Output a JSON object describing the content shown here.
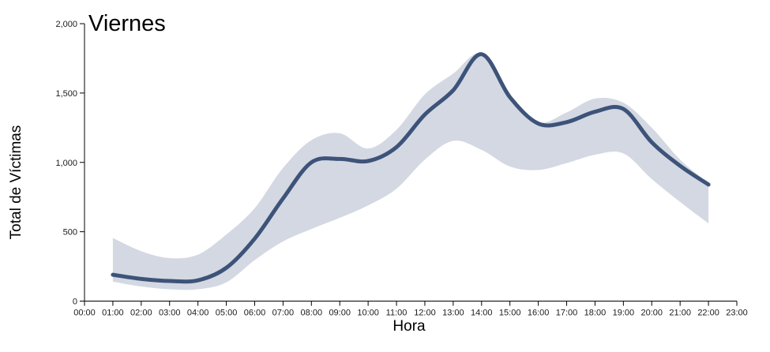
{
  "title": "Viernes",
  "axes": {
    "x_label": "Hora",
    "y_label": "Total de Víctimas"
  },
  "chart_data": {
    "type": "line",
    "subtype": "smoothed line with confidence band",
    "title": "Viernes",
    "xlabel": "Hora",
    "ylabel": "Total de Víctimas",
    "x_domain_hours": [
      0,
      23
    ],
    "ylim": [
      0,
      2000
    ],
    "grid": false,
    "legend": "none",
    "x_tick_labels": [
      "00:00",
      "01:00",
      "02:00",
      "03:00",
      "04:00",
      "05:00",
      "06:00",
      "07:00",
      "08:00",
      "09:00",
      "10:00",
      "11:00",
      "12:00",
      "13:00",
      "14:00",
      "15:00",
      "16:00",
      "17:00",
      "18:00",
      "19:00",
      "20:00",
      "21:00",
      "22:00",
      "23:00"
    ],
    "y_ticks": [
      {
        "value": 0,
        "label": "0"
      },
      {
        "value": 500,
        "label": "500"
      },
      {
        "value": 1000,
        "label": "1,000"
      },
      {
        "value": 1500,
        "label": "1,500"
      },
      {
        "value": 2000,
        "label": "2,000"
      }
    ],
    "x_hours": [
      1,
      2,
      3,
      4,
      5,
      6,
      7,
      8,
      9,
      10,
      11,
      12,
      13,
      14,
      15,
      16,
      17,
      18,
      19,
      20,
      21,
      22
    ],
    "series": [
      {
        "name": "mean-line",
        "values": [
          190,
          160,
          145,
          150,
          240,
          450,
          740,
          1000,
          1025,
          1010,
          1110,
          1345,
          1520,
          1780,
          1470,
          1280,
          1290,
          1365,
          1385,
          1145,
          975,
          840
        ]
      },
      {
        "name": "band-upper",
        "values": [
          455,
          360,
          310,
          335,
          480,
          670,
          960,
          1160,
          1210,
          1100,
          1235,
          1490,
          1640,
          1785,
          1480,
          1290,
          1360,
          1460,
          1430,
          1250,
          1020,
          850
        ]
      },
      {
        "name": "band-lower",
        "values": [
          140,
          105,
          85,
          85,
          135,
          295,
          430,
          520,
          600,
          690,
          810,
          1020,
          1155,
          1090,
          970,
          945,
          995,
          1055,
          1065,
          880,
          715,
          560
        ]
      }
    ],
    "colors": {
      "line": "#3D5379",
      "band": "#D3D8E2",
      "axis": "#000000",
      "tick_text": "#1a1a1a",
      "background": "#ffffff"
    }
  }
}
